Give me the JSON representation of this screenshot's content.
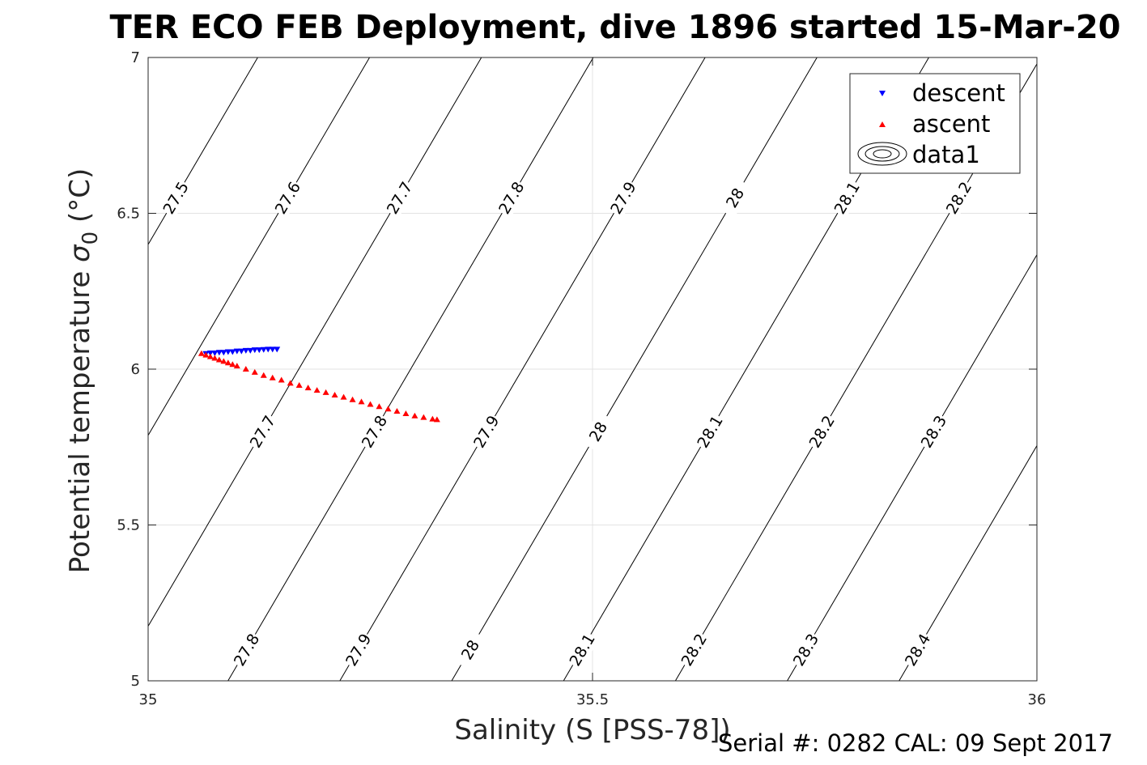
{
  "chart_data": {
    "type": "scatter",
    "title": "TER ECO FEB Deployment, dive 1896 started 15-Mar-20",
    "xlabel": "Salinity (S [PSS-78])",
    "ylabel_main": "Potential temperature ",
    "ylabel_sigma": "σ",
    "ylabel_sub": "0",
    "ylabel_unit": " (°C)",
    "xlim": [
      35,
      36
    ],
    "ylim": [
      5,
      7
    ],
    "x_ticks": [
      35,
      35.5,
      36
    ],
    "x_tick_labels": [
      "35",
      "35.5",
      "36"
    ],
    "y_ticks": [
      5,
      5.5,
      6,
      6.5,
      7
    ],
    "y_tick_labels": [
      "5",
      "5.5",
      "6",
      "6.5",
      "7"
    ],
    "grid": true,
    "legend_position": "top-right",
    "legend": [
      "descent",
      "ascent",
      "data1"
    ],
    "contours": {
      "levels": [
        27.5,
        27.6,
        27.7,
        27.8,
        27.9,
        28,
        28.1,
        28.2,
        28.3,
        28.4
      ],
      "level_labels": [
        "27.5",
        "27.6",
        "27.7",
        "27.8",
        "27.9",
        "28",
        "28.1",
        "28.2",
        "28.3",
        "28.4"
      ],
      "color": "#000000"
    },
    "series": [
      {
        "name": "descent",
        "marker": "triangle-down",
        "color": "#0000ff",
        "x": [
          35.065,
          35.07,
          35.075,
          35.08,
          35.085,
          35.09,
          35.095,
          35.1,
          35.105,
          35.11,
          35.115,
          35.12,
          35.125,
          35.13,
          35.135,
          35.14,
          35.145
        ],
        "y": [
          6.05,
          6.052,
          6.052,
          6.054,
          6.054,
          6.056,
          6.056,
          6.058,
          6.058,
          6.06,
          6.06,
          6.062,
          6.062,
          6.063,
          6.064,
          6.064,
          6.064
        ]
      },
      {
        "name": "ascent",
        "marker": "triangle-up",
        "color": "#ff0000",
        "x": [
          35.06,
          35.065,
          35.07,
          35.075,
          35.08,
          35.085,
          35.09,
          35.095,
          35.1,
          35.11,
          35.12,
          35.13,
          35.14,
          35.15,
          35.16,
          35.17,
          35.18,
          35.19,
          35.2,
          35.21,
          35.22,
          35.23,
          35.24,
          35.25,
          35.26,
          35.27,
          35.28,
          35.29,
          35.3,
          35.31,
          35.32,
          35.325
        ],
        "y": [
          6.05,
          6.045,
          6.04,
          6.035,
          6.03,
          6.025,
          6.02,
          6.015,
          6.01,
          6.0,
          5.99,
          5.98,
          5.972,
          5.965,
          5.955,
          5.948,
          5.94,
          5.932,
          5.925,
          5.917,
          5.91,
          5.902,
          5.895,
          5.887,
          5.88,
          5.872,
          5.865,
          5.857,
          5.85,
          5.845,
          5.84,
          5.838
        ]
      }
    ]
  },
  "footer": {
    "serial_text": "Serial #: 0282  CAL: 09 Sept 2017"
  }
}
